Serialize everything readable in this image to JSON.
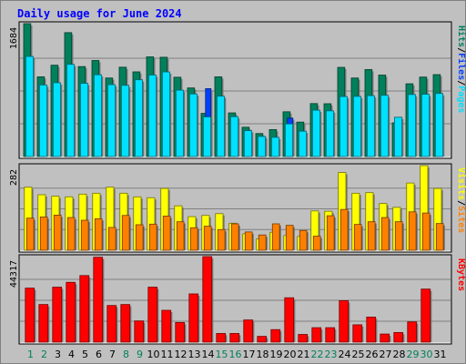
{
  "colors": {
    "background": "#c0c0c0",
    "panel": "#c0c0c0",
    "title": "#0000ff",
    "hits": "#00805c",
    "files": "#0040ff",
    "pages": "#00e0ff",
    "visits": "#ffff00",
    "sites": "#ff8000",
    "kbytes": "#ff0000",
    "weekend_label": "#00805c",
    "weekday_label": "#000000"
  },
  "chart_data": {
    "type": "bar",
    "title": "Daily usage for June 2024",
    "days": [
      "1",
      "2",
      "3",
      "4",
      "5",
      "6",
      "7",
      "8",
      "9",
      "10",
      "11",
      "12",
      "13",
      "14",
      "15",
      "16",
      "17",
      "18",
      "19",
      "20",
      "21",
      "22",
      "23",
      "24",
      "25",
      "26",
      "27",
      "28",
      "29",
      "30",
      "31"
    ],
    "weekend_days": [
      "1",
      "2",
      "8",
      "9",
      "15",
      "16",
      "22",
      "23",
      "29",
      "30"
    ],
    "panels": [
      {
        "id": "top",
        "max_label": "1684",
        "ymax": 1684,
        "legend": [
          {
            "text": "Pages",
            "color_key": "pages"
          },
          {
            "text": "/",
            "color_key": "weekday_label"
          },
          {
            "text": "Files",
            "color_key": "files"
          },
          {
            "text": "/",
            "color_key": "weekday_label"
          },
          {
            "text": "Hits",
            "color_key": "hits"
          }
        ],
        "series": [
          {
            "name": "Hits",
            "color_key": "hits",
            "values": [
              1684,
              1010,
              1157,
              1570,
              1140,
              1217,
              995,
              1132,
              1073,
              1263,
              1258,
              1005,
              869,
              547,
              1010,
              553,
              371,
              291,
              341,
              567,
              436,
              671,
              669,
              1130,
              995,
              1102,
              1032,
              427,
              922,
              1007,
              1038
            ]
          },
          {
            "name": "Files",
            "color_key": "files",
            "values": [
              0,
              0,
              0,
              0,
              0,
              0,
              0,
              0,
              0,
              0,
              0,
              0,
              0,
              0,
              0,
              0,
              0,
              0,
              0,
              0,
              0,
              0,
              0,
              0,
              0,
              0,
              0,
              0,
              0,
              0,
              0
            ]
          },
          {
            "name": "Pages",
            "color_key": "pages",
            "values": [
              1268,
              907,
              935,
              1168,
              928,
              1036,
              911,
              902,
              973,
              1033,
              1072,
              841,
              793,
              502,
              765,
              505,
              328,
              254,
              243,
              413,
              321,
              587,
              579,
              760,
              762,
              771,
              776,
              498,
              786,
              789,
              799
            ]
          }
        ],
        "overlay_files": [
          {
            "day": "14",
            "value": 860
          },
          {
            "day": "18",
            "value": 250
          },
          {
            "day": "20",
            "value": 487
          }
        ]
      },
      {
        "id": "middle",
        "max_label": "282",
        "ymax": 282,
        "legend": [
          {
            "text": "Sites",
            "color_key": "sites"
          },
          {
            "text": "/",
            "color_key": "weekday_label"
          },
          {
            "text": "Visits",
            "color_key": "visits"
          }
        ],
        "series": [
          {
            "name": "Visits",
            "color_key": "visits",
            "values": [
              210,
              185,
              180,
              178,
              187,
              190,
              210,
              190,
              178,
              175,
              206,
              148,
              112,
              116,
              122,
              90,
              55,
              38,
              60,
              49,
              46,
              131,
              130,
              259,
              190,
              192,
              156,
              143,
              224,
              282,
              206
            ]
          },
          {
            "name": "Sites",
            "color_key": "sites",
            "values": [
              107,
              111,
              117,
              109,
              100,
              105,
              76,
              116,
              85,
              87,
              114,
              95,
              75,
              80,
              69,
              88,
              61,
              51,
              88,
              83,
              66,
              47,
              115,
              136,
              86,
              95,
              109,
              95,
              128,
              124,
              89
            ]
          }
        ]
      },
      {
        "id": "bottom",
        "max_label": "44317",
        "ymax": 44317,
        "legend": [
          {
            "text": "KBytes",
            "color_key": "kbytes"
          }
        ],
        "series": [
          {
            "name": "KBytes",
            "color_key": "kbytes",
            "values": [
              28000,
              19500,
              28500,
              31000,
              34500,
              44000,
              19000,
              19500,
              11000,
              28500,
              16500,
              10200,
              25000,
              44317,
              4500,
              4500,
              11500,
              3000,
              6500,
              23000,
              4000,
              7500,
              7500,
              21500,
              9000,
              13000,
              4200,
              5000,
              10500,
              27500,
              0
            ]
          }
        ]
      }
    ]
  }
}
